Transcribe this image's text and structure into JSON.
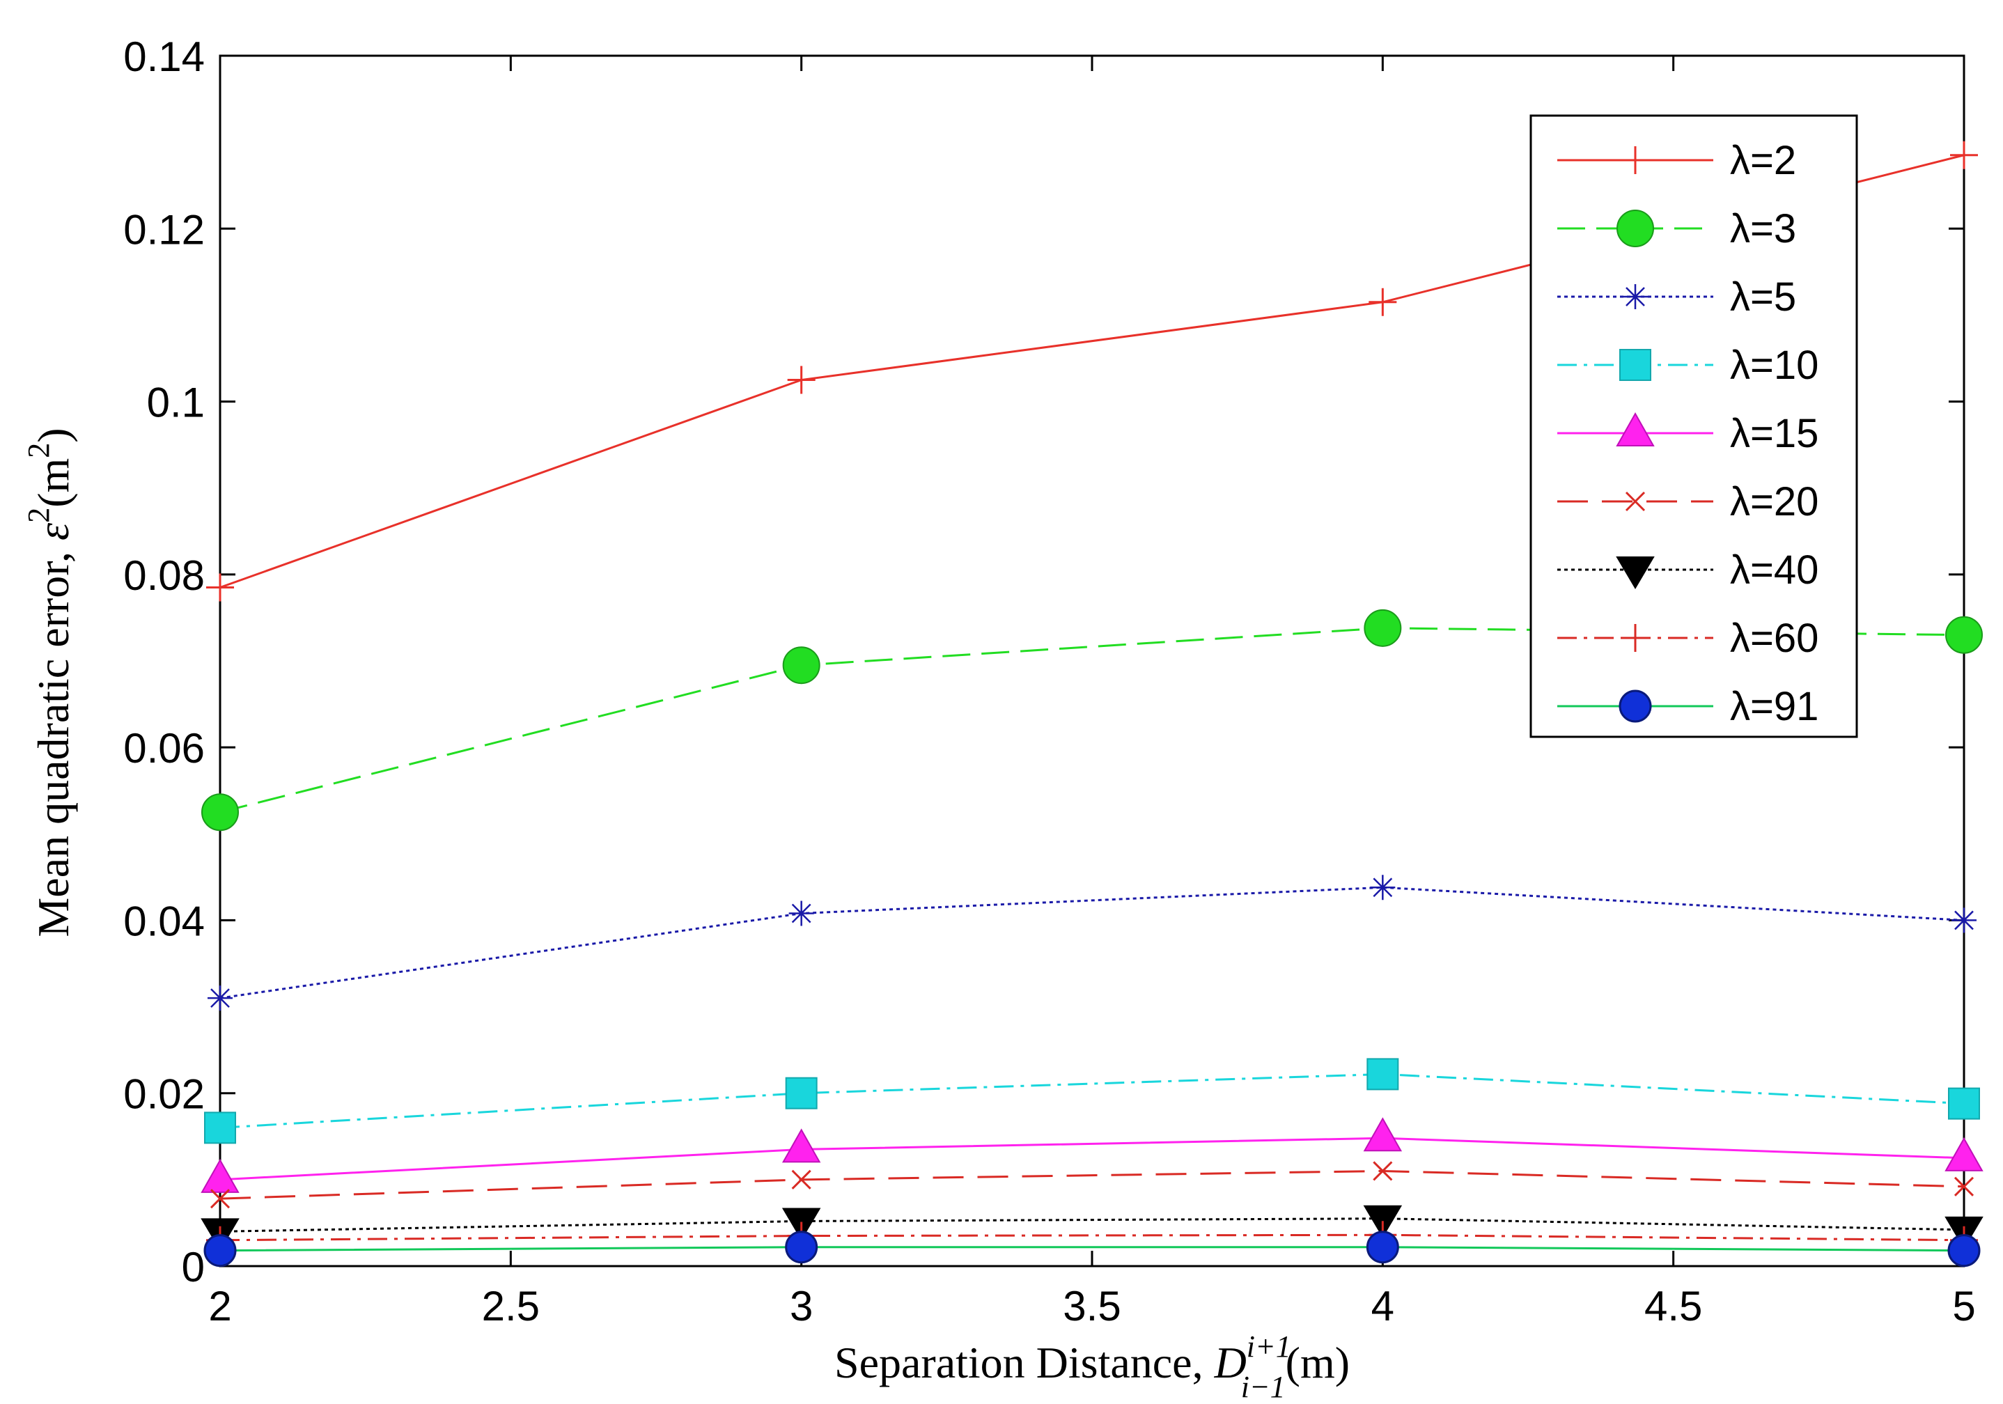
{
  "chart_data": {
    "type": "line",
    "title": "",
    "xlabel": {
      "prefix": "Separation Distance, ",
      "var": "D",
      "sup": "i+1",
      "sub": "i−1",
      "unit": "(m)"
    },
    "ylabel": {
      "prefix": "Mean quadratic error, ",
      "var": "ε",
      "sup": "2",
      "unit": "(m",
      "unit_sup": "2",
      "unit_end": ")"
    },
    "xlim": [
      2,
      5
    ],
    "ylim": [
      0,
      0.14
    ],
    "x_ticks": [
      "2",
      "2.5",
      "3",
      "3.5",
      "4",
      "4.5",
      "5"
    ],
    "y_ticks": [
      "0",
      "0.02",
      "0.04",
      "0.06",
      "0.08",
      "0.1",
      "0.12",
      "0.14"
    ],
    "grid": false,
    "legend_position": "top-right",
    "x": [
      2,
      3,
      4,
      5
    ],
    "series": [
      {
        "name": "λ=2",
        "values": [
          0.0785,
          0.1025,
          0.1115,
          0.1285
        ],
        "color": "#e8312a",
        "dash": "solid",
        "marker": "plus"
      },
      {
        "name": "λ=3",
        "values": [
          0.0525,
          0.0695,
          0.0738,
          0.073
        ],
        "color": "#22dd22",
        "dash": "dashed",
        "marker": "circle"
      },
      {
        "name": "λ=5",
        "values": [
          0.031,
          0.0408,
          0.0438,
          0.04
        ],
        "color": "#1a1aa8",
        "dash": "dotted",
        "marker": "asterisk"
      },
      {
        "name": "λ=10",
        "values": [
          0.016,
          0.02,
          0.0222,
          0.0188
        ],
        "color": "#19d6dc",
        "dash": "dashdot",
        "marker": "square"
      },
      {
        "name": "λ=15",
        "values": [
          0.01,
          0.0135,
          0.0148,
          0.0125
        ],
        "color": "#ff22ee",
        "dash": "solid",
        "marker": "triangle"
      },
      {
        "name": "λ=20",
        "values": [
          0.0078,
          0.01,
          0.011,
          0.0092
        ],
        "color": "#d92a24",
        "dash": "longdash",
        "marker": "x"
      },
      {
        "name": "λ=40",
        "values": [
          0.004,
          0.0052,
          0.0055,
          0.0042
        ],
        "color": "#000000",
        "dash": "dotted",
        "marker": "triangle-down"
      },
      {
        "name": "λ=60",
        "values": [
          0.003,
          0.0035,
          0.0036,
          0.003
        ],
        "color": "#d92a24",
        "dash": "dashdot",
        "marker": "plus"
      },
      {
        "name": "λ=91",
        "values": [
          0.0018,
          0.0022,
          0.0022,
          0.0018
        ],
        "color": "#12c85a",
        "dash": "solid",
        "marker": "filled-circle-blue"
      }
    ]
  }
}
